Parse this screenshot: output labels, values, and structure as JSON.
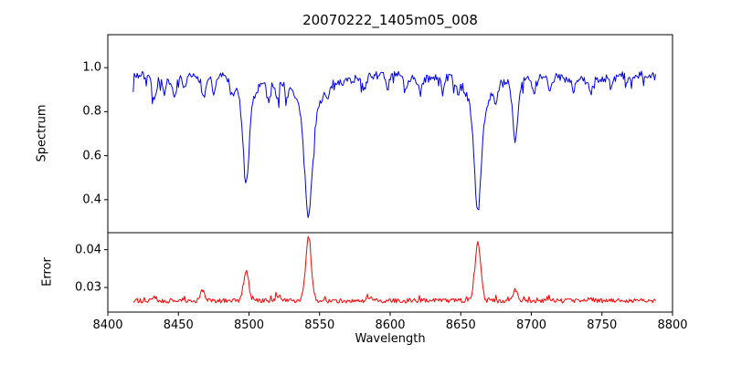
{
  "figure": {
    "background": "#ffffff",
    "axes_color": "#000000"
  },
  "chart_data": {
    "type": "line",
    "title": "20070222_1405m05_008",
    "xlabel": "Wavelength",
    "xlim": [
      8400,
      8800
    ],
    "x_ticks": [
      8400,
      8450,
      8500,
      8550,
      8600,
      8650,
      8700,
      8750,
      8800
    ],
    "x_data_range": [
      8418,
      8788
    ],
    "grid": false,
    "legend": "none",
    "seed": 7,
    "spectrum": {
      "ylabel": "Spectrum",
      "color": "#0000ee",
      "ylim": [
        0.25,
        1.15
      ],
      "y_ticks": [
        0.4,
        0.6,
        0.8,
        1.0
      ],
      "y_tick_labels": [
        "0.4",
        "0.6",
        "0.8",
        "1.0"
      ],
      "continuum": 0.952,
      "noise": 0.035,
      "absorption_lines": [
        {
          "c": 8498.0,
          "d": 0.35,
          "w": 2.0
        },
        {
          "c": 8498.0,
          "d": 0.12,
          "w": 5.0
        },
        {
          "c": 8542.1,
          "d": 0.45,
          "w": 2.6
        },
        {
          "c": 8542.1,
          "d": 0.17,
          "w": 8.0
        },
        {
          "c": 8662.1,
          "d": 0.44,
          "w": 2.4
        },
        {
          "c": 8662.1,
          "d": 0.16,
          "w": 7.0
        },
        {
          "c": 8688.6,
          "d": 0.26,
          "w": 1.8
        },
        {
          "c": 8433,
          "d": 0.1,
          "w": 1.4
        },
        {
          "c": 8440,
          "d": 0.08,
          "w": 1.3
        },
        {
          "c": 8447,
          "d": 0.09,
          "w": 1.4
        },
        {
          "c": 8454,
          "d": 0.06,
          "w": 1.2
        },
        {
          "c": 8468,
          "d": 0.1,
          "w": 1.5
        },
        {
          "c": 8475,
          "d": 0.08,
          "w": 1.3
        },
        {
          "c": 8488,
          "d": 0.07,
          "w": 1.2
        },
        {
          "c": 8514,
          "d": 0.09,
          "w": 1.4
        },
        {
          "c": 8520,
          "d": 0.07,
          "w": 1.3
        },
        {
          "c": 8527,
          "d": 0.05,
          "w": 1.2
        },
        {
          "c": 8556,
          "d": 0.05,
          "w": 1.2
        },
        {
          "c": 8582,
          "d": 0.06,
          "w": 1.3
        },
        {
          "c": 8598,
          "d": 0.07,
          "w": 1.3
        },
        {
          "c": 8611,
          "d": 0.05,
          "w": 1.2
        },
        {
          "c": 8621,
          "d": 0.06,
          "w": 1.3
        },
        {
          "c": 8637,
          "d": 0.05,
          "w": 1.2
        },
        {
          "c": 8648,
          "d": 0.06,
          "w": 1.3
        },
        {
          "c": 8675,
          "d": 0.07,
          "w": 1.3
        },
        {
          "c": 8702,
          "d": 0.05,
          "w": 1.2
        },
        {
          "c": 8713,
          "d": 0.06,
          "w": 1.3
        },
        {
          "c": 8730,
          "d": 0.05,
          "w": 1.2
        },
        {
          "c": 8742,
          "d": 0.06,
          "w": 1.3
        },
        {
          "c": 8757,
          "d": 0.05,
          "w": 1.2
        },
        {
          "c": 8768,
          "d": 0.04,
          "w": 1.2
        }
      ]
    },
    "error": {
      "ylabel": "Error",
      "color": "#ff0000",
      "ylim": [
        0.0235,
        0.0445
      ],
      "y_ticks": [
        0.03,
        0.04
      ],
      "y_tick_labels": [
        "0.03",
        "0.04"
      ],
      "baseline": 0.0265,
      "noise": 0.0006,
      "peaks": [
        {
          "c": 8498.0,
          "h": 0.008,
          "w": 1.8
        },
        {
          "c": 8542.1,
          "h": 0.0167,
          "w": 2.0
        },
        {
          "c": 8662.1,
          "h": 0.0157,
          "w": 2.0
        },
        {
          "c": 8688.6,
          "h": 0.0028,
          "w": 1.5
        },
        {
          "c": 8467,
          "h": 0.0026,
          "w": 1.6
        },
        {
          "c": 8433,
          "h": 0.0012,
          "w": 1.4
        },
        {
          "c": 8520,
          "h": 0.001,
          "w": 1.3
        },
        {
          "c": 8585,
          "h": 0.001,
          "w": 1.3
        },
        {
          "c": 8713,
          "h": 0.0008,
          "w": 1.3
        },
        {
          "c": 8742,
          "h": 0.0007,
          "w": 1.3
        }
      ]
    }
  }
}
